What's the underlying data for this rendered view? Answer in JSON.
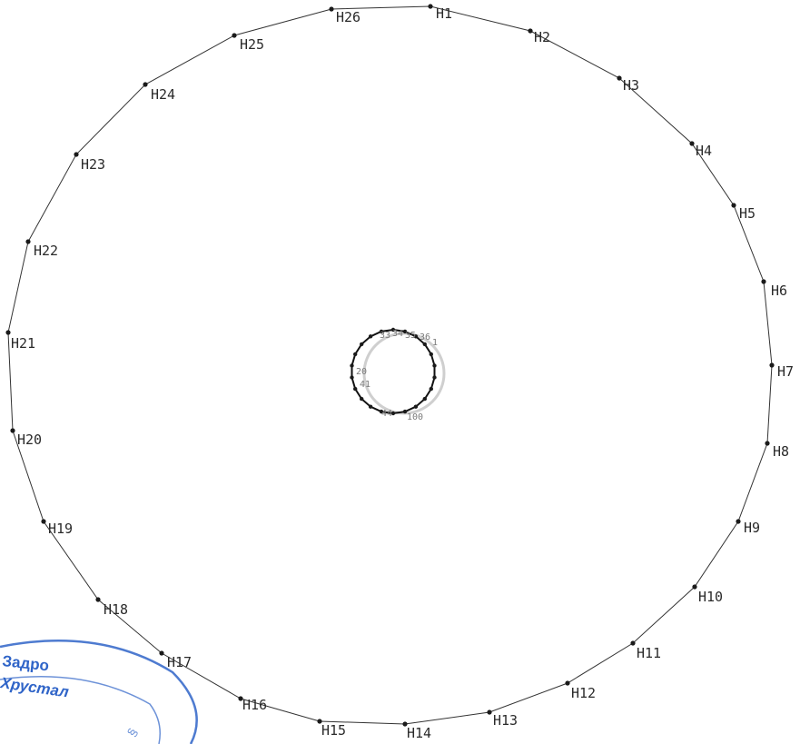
{
  "diagram": {
    "outer_points": [
      {
        "label": "H1"
      },
      {
        "label": "H2"
      },
      {
        "label": "H3"
      },
      {
        "label": "H4"
      },
      {
        "label": "H5"
      },
      {
        "label": "H6"
      },
      {
        "label": "H7"
      },
      {
        "label": "H8"
      },
      {
        "label": "H9"
      },
      {
        "label": "H10"
      },
      {
        "label": "H11"
      },
      {
        "label": "H12"
      },
      {
        "label": "H13"
      },
      {
        "label": "H14"
      },
      {
        "label": "H15"
      },
      {
        "label": "H16"
      },
      {
        "label": "H17"
      },
      {
        "label": "H18"
      },
      {
        "label": "H19"
      },
      {
        "label": "H20"
      },
      {
        "label": "H21"
      },
      {
        "label": "H22"
      },
      {
        "label": "H23"
      },
      {
        "label": "H24"
      },
      {
        "label": "H25"
      },
      {
        "label": "H26"
      }
    ],
    "inner_labels": [
      "33",
      "34",
      "35",
      "36",
      "1",
      "20",
      "41",
      "44",
      "100"
    ]
  },
  "stamp": {
    "line1": "Задро",
    "line2": "Хрустал"
  },
  "colors": {
    "line": "#333333",
    "point": "#1a1a1a",
    "stamp": "#2f64c8"
  }
}
